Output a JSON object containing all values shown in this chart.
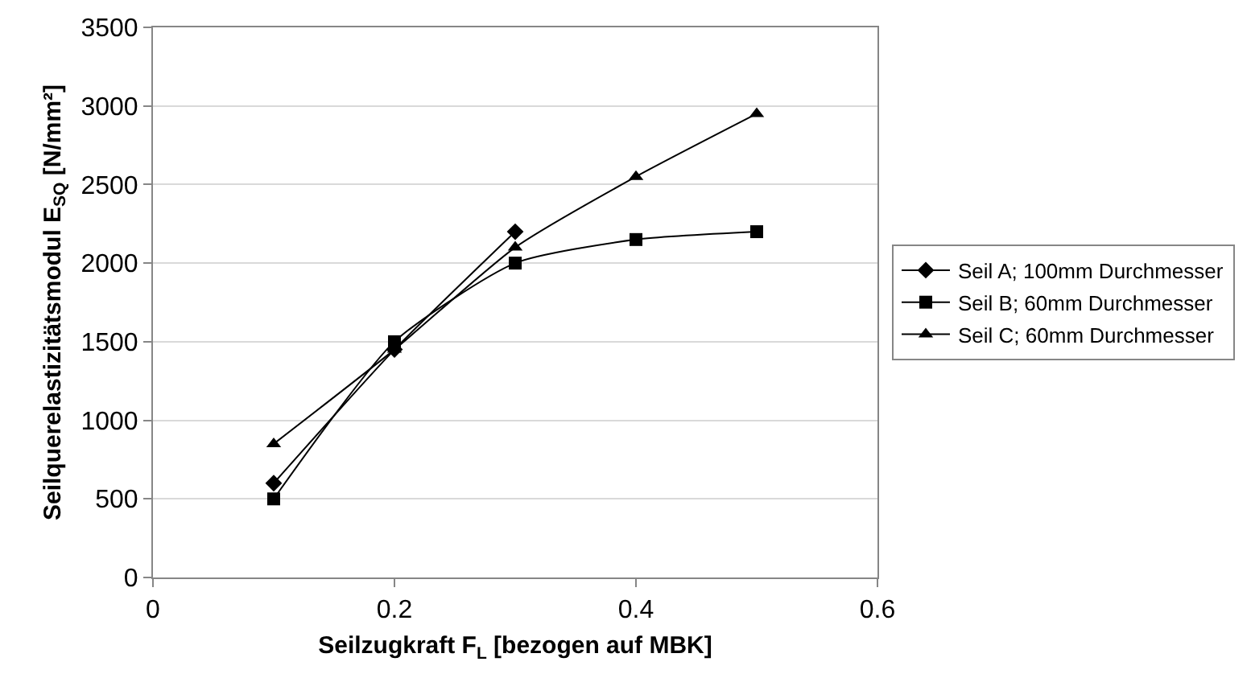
{
  "chart_data": {
    "type": "line",
    "xlabel": "Seilzugkraft F$_{L}$ [bezogen auf MBK]",
    "ylabel": "Seilquerelastizitätsmodul E$_{SQ}$ [N/mm²]",
    "xlim": [
      0,
      0.6
    ],
    "xticks": [
      0,
      0.2,
      0.4,
      0.6
    ],
    "ylim": [
      0,
      3500
    ],
    "yticks": [
      0,
      500,
      1000,
      1500,
      2000,
      2500,
      3000,
      3500
    ],
    "grid": "y",
    "legend": "right",
    "series": [
      {
        "name": "Seil A; 100mm Durchmesser",
        "color": "#000000",
        "marker": "diamond",
        "x": [
          0.1,
          0.2,
          0.3
        ],
        "values": [
          600,
          1450,
          2200
        ]
      },
      {
        "name": "Seil B; 60mm Durchmesser",
        "color": "#000000",
        "marker": "square",
        "x": [
          0.1,
          0.2,
          0.3,
          0.4,
          0.5
        ],
        "values": [
          500,
          1500,
          2000,
          2150,
          2200
        ]
      },
      {
        "name": "Seil C; 60mm Durchmesser",
        "color": "#000000",
        "marker": "triangle",
        "x": [
          0.1,
          0.2,
          0.3,
          0.4,
          0.5
        ],
        "values": [
          850,
          1450,
          2100,
          2550,
          2950
        ]
      }
    ]
  }
}
